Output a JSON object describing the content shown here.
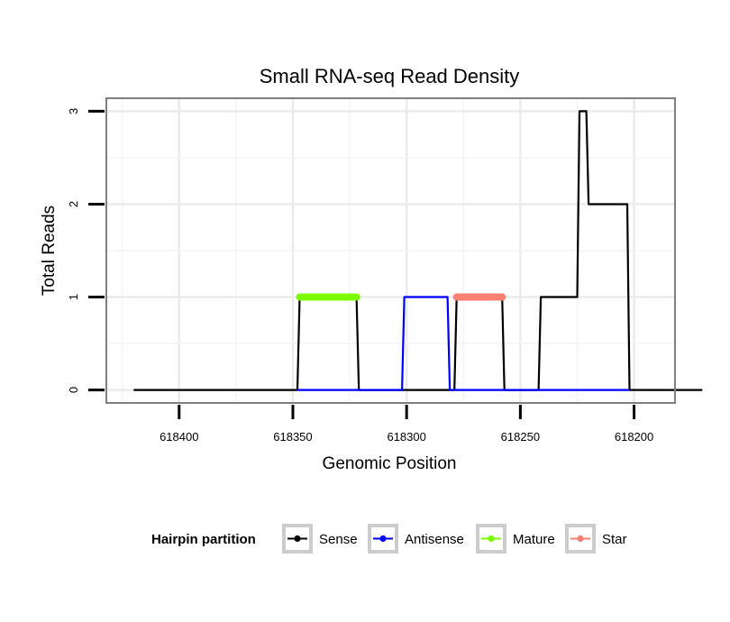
{
  "chart_data": {
    "type": "line",
    "title": "Small RNA-seq Read Density",
    "xlabel": "Genomic Position",
    "ylabel": "Total Reads",
    "xlim": [
      618432,
      618182
    ],
    "x_reversed": true,
    "ylim": [
      -0.14,
      3.14
    ],
    "x_ticks": [
      618400,
      618350,
      618300,
      618250,
      618200
    ],
    "x_tick_labels": [
      "618400",
      "618350",
      "618300",
      "618250",
      "618200"
    ],
    "y_ticks": [
      0,
      1,
      2,
      3
    ],
    "y_tick_labels": [
      "0",
      "1",
      "2",
      "3"
    ],
    "grid": true,
    "legend": {
      "title": "Hairpin partition",
      "position": "bottom",
      "entries": [
        {
          "label": "Sense",
          "color": "#000000"
        },
        {
          "label": "Antisense",
          "color": "#0000ff"
        },
        {
          "label": "Mature",
          "color": "#7cfc00"
        },
        {
          "label": "Star",
          "color": "#fa8072"
        }
      ]
    },
    "series": [
      {
        "name": "Sense",
        "color": "#000000",
        "width": 2.2,
        "x": [
          618420,
          618348,
          618347,
          618322,
          618321,
          618301,
          618279,
          618278,
          618258,
          618257,
          618242,
          618241,
          618225,
          618224,
          618221,
          618220,
          618217,
          618216,
          618203,
          618202,
          618170
        ],
        "y": [
          0,
          0,
          1,
          1,
          0,
          0,
          0,
          1,
          1,
          0,
          0,
          1,
          1,
          3,
          3,
          2,
          2,
          2,
          2,
          0,
          0
        ]
      },
      {
        "name": "Antisense",
        "color": "#0000ff",
        "width": 2.2,
        "x": [
          618348,
          618302,
          618301,
          618282,
          618281,
          618202
        ],
        "y": [
          0,
          0,
          1,
          1,
          0,
          0
        ]
      },
      {
        "name": "Mature",
        "color": "#7cfc00",
        "width": 8,
        "x": [
          618347,
          618322
        ],
        "y": [
          1,
          1
        ]
      },
      {
        "name": "Star",
        "color": "#fa8072",
        "width": 8,
        "x": [
          618278,
          618258
        ],
        "y": [
          1,
          1
        ]
      }
    ]
  }
}
